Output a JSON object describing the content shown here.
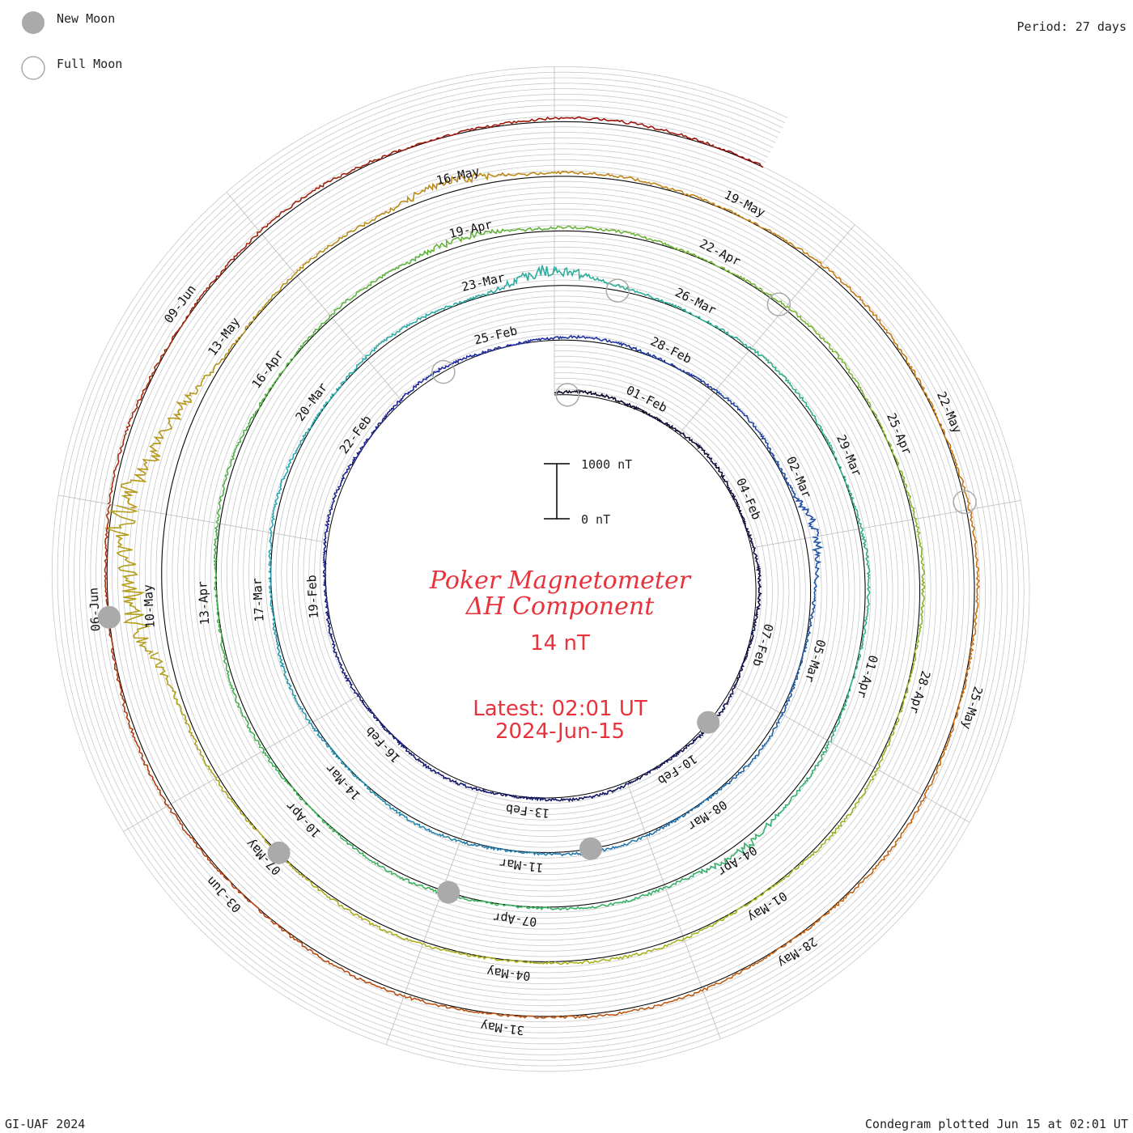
{
  "legend": {
    "new_moon_label": "New Moon",
    "full_moon_label": "Full Moon"
  },
  "period_label": "Period: 27 days",
  "footer": {
    "left": "GI-UAF 2024",
    "right": "Condegram plotted Jun 15 at 02:01 UT"
  },
  "chart_data": {
    "type": "condegram-spiral",
    "title_line1": "Poker Magnetometer",
    "title_line2": "ΔH Component",
    "current_value": "14 nT",
    "latest_line1": "Latest: 02:01 UT",
    "latest_line2": "2024-Jun-15",
    "scale": {
      "top_label": "1000 nT",
      "bottom_label": "0 nT",
      "top_value": 1000,
      "bottom_value": 0
    },
    "period_days": 27,
    "start_date": "2024-01-30",
    "end_date": "2024-06-15",
    "date_labels": [
      "01-Feb",
      "04-Feb",
      "07-Feb",
      "10-Feb",
      "13-Feb",
      "16-Feb",
      "19-Feb",
      "22-Feb",
      "25-Feb",
      "28-Feb",
      "02-Mar",
      "05-Mar",
      "08-Mar",
      "11-Mar",
      "14-Mar",
      "17-Mar",
      "20-Mar",
      "23-Mar",
      "26-Mar",
      "29-Mar",
      "01-Apr",
      "04-Apr",
      "07-Apr",
      "10-Apr",
      "13-Apr",
      "16-Apr",
      "19-Apr",
      "22-Apr",
      "25-Apr",
      "28-Apr",
      "01-May",
      "04-May",
      "07-May",
      "10-May",
      "13-May",
      "16-May",
      "19-May",
      "22-May",
      "25-May",
      "28-May",
      "31-May",
      "03-Jun",
      "06-Jun",
      "09-Jun"
    ],
    "new_moons": [
      "2024-02-09",
      "2024-03-10",
      "2024-04-08",
      "2024-05-07",
      "2024-06-06"
    ],
    "full_moons": [
      "2024-01-25",
      "2024-02-24",
      "2024-03-25",
      "2024-04-23",
      "2024-05-23"
    ],
    "disturbances": [
      {
        "date": "2024-05-11",
        "peak_nT": 1000
      },
      {
        "date": "2024-05-10",
        "peak_nT": 700
      },
      {
        "date": "2024-05-12",
        "peak_nT": 400
      },
      {
        "date": "2024-03-24",
        "peak_nT": 350
      },
      {
        "date": "2024-03-03",
        "peak_nT": 250
      },
      {
        "date": "2024-04-19",
        "peak_nT": 200
      },
      {
        "date": "2024-04-04",
        "peak_nT": 200
      },
      {
        "date": "2024-05-16",
        "peak_nT": 250
      }
    ],
    "grid": true
  }
}
